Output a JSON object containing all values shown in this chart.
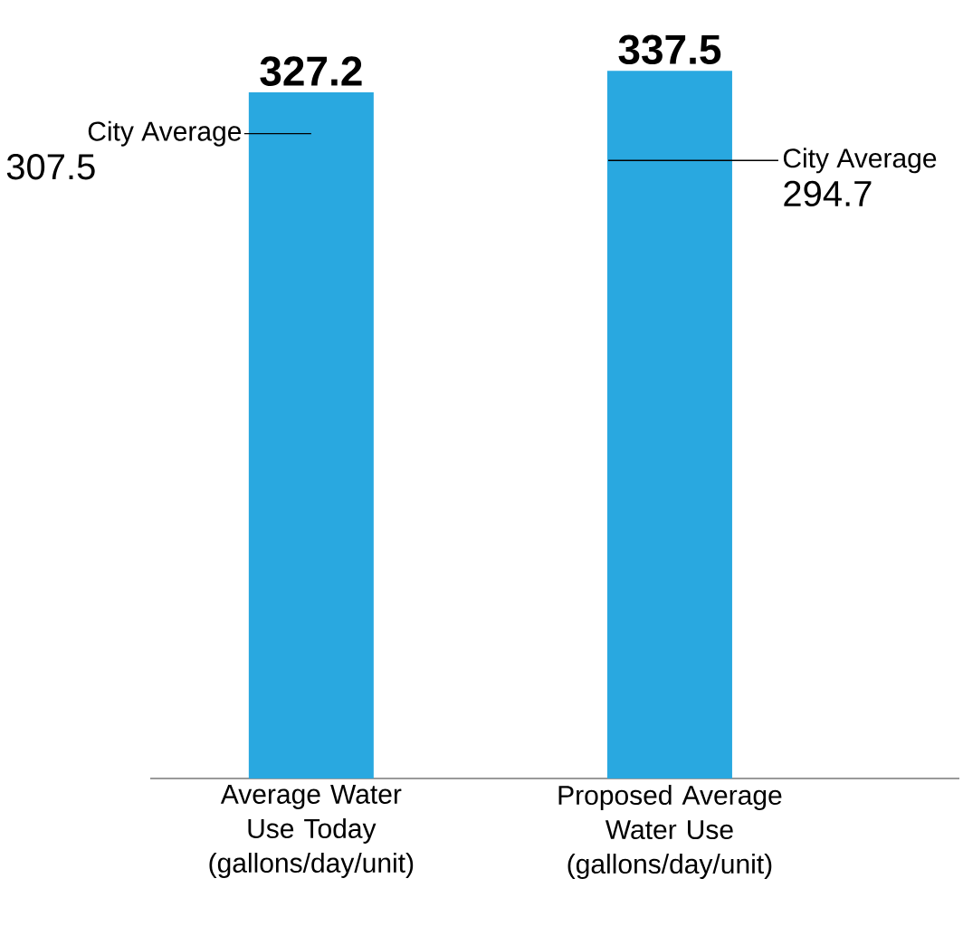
{
  "chart_data": {
    "type": "bar",
    "categories": [
      "Average Water Use Today (gallons/day/unit)",
      "Proposed Average Water Use (gallons/day/unit)"
    ],
    "values": [
      327.2,
      337.5
    ],
    "color": "#29a8e0",
    "data_labels": true,
    "ref_lines": [
      {
        "axis": "y",
        "value": 307.5,
        "label": "City Average",
        "color": "#000000"
      },
      {
        "axis": "y",
        "value": 294.7,
        "label": "City Average",
        "color": "#000000"
      }
    ],
    "annotations": [
      "307.5",
      "294.7"
    ]
  }
}
